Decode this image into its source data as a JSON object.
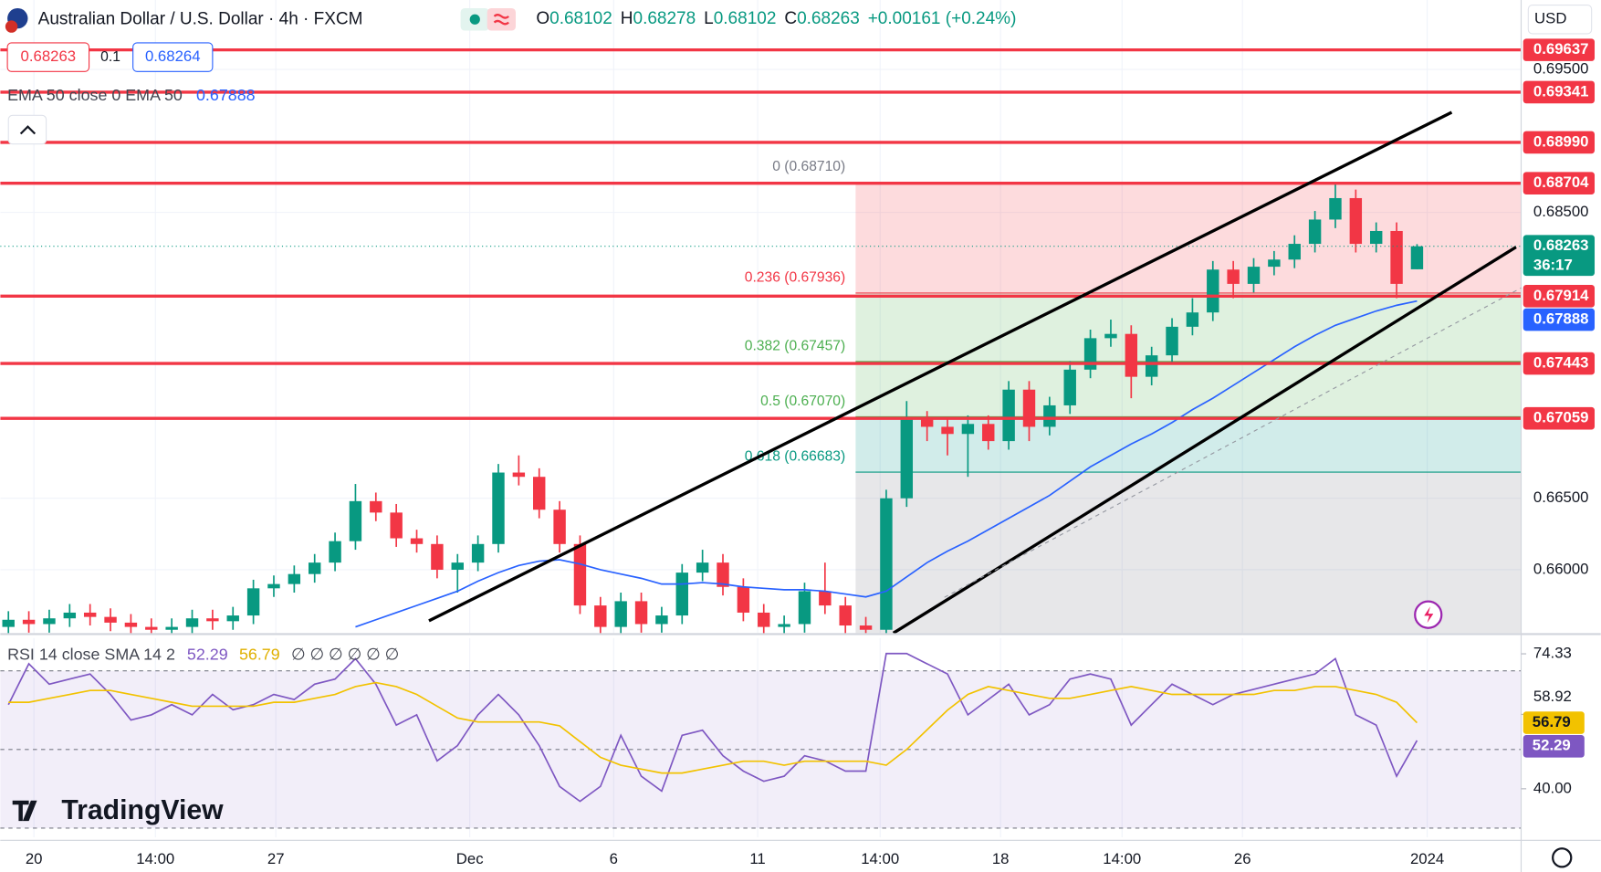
{
  "header": {
    "symbol": "Australian Dollar / U.S. Dollar · 4h · FXCM",
    "ohlc": [
      {
        "label": "O",
        "value": 0.68102
      },
      {
        "label": "H",
        "value": 0.68278
      },
      {
        "label": "L",
        "value": 0.68102
      },
      {
        "label": "C",
        "value": 0.68263
      }
    ],
    "change": "+0.00161 (+0.24%)",
    "currency": "USD"
  },
  "quote": {
    "bid": 0.68263,
    "spread": 0.1,
    "ask": 0.68264
  },
  "ema_legend": {
    "label": "EMA 50 close 0 EMA 50",
    "value": 0.67888
  },
  "brand": "TradingView",
  "chart_data": [
    {
      "type": "candlestick",
      "xlim": [
        -0.4,
        74.1
      ],
      "xticks": [
        {
          "value": 1.25,
          "label": "20"
        },
        {
          "value": 7.2,
          "label": "14:00"
        },
        {
          "value": 13.1,
          "label": "27"
        },
        {
          "value": 22.6,
          "label": "Dec"
        },
        {
          "value": 29.65,
          "label": "6"
        },
        {
          "value": 36.7,
          "label": "11"
        },
        {
          "value": 42.7,
          "label": "14:00"
        },
        {
          "value": 48.6,
          "label": "18"
        },
        {
          "value": 54.55,
          "label": "14:00"
        },
        {
          "value": 60.45,
          "label": "26"
        },
        {
          "value": 69.5,
          "label": "2024"
        }
      ],
      "ylim": [
        0.65557,
        0.69986
      ],
      "yticks": [
        {
          "value": 0.66,
          "label": "0.66000"
        },
        {
          "value": 0.665,
          "label": "0.66500"
        },
        {
          "value": 0.685,
          "label": "0.68500"
        },
        {
          "value": 0.695,
          "label": "0.69500"
        }
      ],
      "grid": true,
      "up_color": "#089981",
      "down_color": "#f23645",
      "open": [
        0.656,
        0.6565,
        0.6562,
        0.6566,
        0.657,
        0.6567,
        0.6563,
        0.656,
        0.6558,
        0.656,
        0.6566,
        0.6564,
        0.6568,
        0.6587,
        0.659,
        0.6597,
        0.6605,
        0.662,
        0.6648,
        0.664,
        0.6622,
        0.6618,
        0.66,
        0.6605,
        0.6618,
        0.6668,
        0.6665,
        0.6642,
        0.6618,
        0.6575,
        0.656,
        0.6578,
        0.6562,
        0.6568,
        0.6598,
        0.6605,
        0.6588,
        0.657,
        0.656,
        0.6562,
        0.6585,
        0.6575,
        0.6561,
        0.6558,
        0.665,
        0.6705,
        0.67,
        0.6695,
        0.6702,
        0.669,
        0.6726,
        0.67,
        0.6715,
        0.674,
        0.6762,
        0.6765,
        0.6735,
        0.675,
        0.677,
        0.678,
        0.681,
        0.68,
        0.6812,
        0.6817,
        0.6828,
        0.6845,
        0.686,
        0.6828,
        0.6837,
        0.68102
      ],
      "high": [
        0.6571,
        0.6571,
        0.6572,
        0.6576,
        0.6576,
        0.6573,
        0.6569,
        0.6566,
        0.6566,
        0.6572,
        0.6572,
        0.6574,
        0.6593,
        0.6596,
        0.6603,
        0.6611,
        0.6626,
        0.666,
        0.6654,
        0.6646,
        0.6628,
        0.6624,
        0.6611,
        0.6624,
        0.6674,
        0.668,
        0.6671,
        0.6648,
        0.6624,
        0.6581,
        0.6584,
        0.6584,
        0.6574,
        0.6604,
        0.6614,
        0.6611,
        0.6594,
        0.6576,
        0.6568,
        0.6591,
        0.6605,
        0.6581,
        0.6567,
        0.6656,
        0.6718,
        0.6711,
        0.6706,
        0.6708,
        0.6708,
        0.6732,
        0.6732,
        0.6721,
        0.6746,
        0.6768,
        0.6775,
        0.6771,
        0.6756,
        0.6776,
        0.679,
        0.6816,
        0.6816,
        0.6818,
        0.6823,
        0.6834,
        0.6851,
        0.6871,
        0.6866,
        0.6843,
        0.6843,
        0.68278
      ],
      "low": [
        0.6554,
        0.6556,
        0.6556,
        0.656,
        0.6561,
        0.6557,
        0.6554,
        0.6552,
        0.6552,
        0.6554,
        0.6558,
        0.6558,
        0.6562,
        0.6581,
        0.6584,
        0.6591,
        0.6599,
        0.6614,
        0.6634,
        0.6616,
        0.6612,
        0.6594,
        0.6584,
        0.6599,
        0.6612,
        0.6659,
        0.6636,
        0.6612,
        0.6569,
        0.6554,
        0.6554,
        0.6556,
        0.6556,
        0.6562,
        0.6592,
        0.6582,
        0.6564,
        0.6554,
        0.6554,
        0.6556,
        0.6569,
        0.6555,
        0.6552,
        0.6552,
        0.6644,
        0.669,
        0.668,
        0.6665,
        0.6684,
        0.6684,
        0.669,
        0.6694,
        0.6709,
        0.6734,
        0.6756,
        0.672,
        0.6729,
        0.6744,
        0.6764,
        0.6774,
        0.679,
        0.6794,
        0.6806,
        0.6811,
        0.6822,
        0.6839,
        0.6822,
        0.6822,
        0.679,
        0.68102
      ],
      "close": [
        0.6565,
        0.6562,
        0.6566,
        0.657,
        0.6567,
        0.6563,
        0.656,
        0.6558,
        0.656,
        0.6566,
        0.6564,
        0.6568,
        0.6587,
        0.659,
        0.6597,
        0.6605,
        0.662,
        0.6648,
        0.664,
        0.6622,
        0.6618,
        0.66,
        0.6605,
        0.6618,
        0.6668,
        0.6665,
        0.6642,
        0.6618,
        0.6575,
        0.656,
        0.6578,
        0.6562,
        0.6568,
        0.6598,
        0.6605,
        0.6588,
        0.657,
        0.656,
        0.6562,
        0.6585,
        0.6575,
        0.6561,
        0.6558,
        0.665,
        0.6705,
        0.67,
        0.6695,
        0.6702,
        0.669,
        0.6726,
        0.67,
        0.6715,
        0.674,
        0.6762,
        0.6765,
        0.6735,
        0.675,
        0.677,
        0.678,
        0.681,
        0.68,
        0.6812,
        0.6817,
        0.6828,
        0.6845,
        0.686,
        0.6828,
        0.6837,
        0.68,
        0.68263
      ],
      "ema": {
        "color": "#2962ff",
        "values": [
          null,
          null,
          null,
          null,
          null,
          null,
          null,
          null,
          null,
          null,
          null,
          null,
          null,
          null,
          null,
          null,
          null,
          0.656,
          0.6565,
          0.657,
          0.6575,
          0.658,
          0.6585,
          0.6592,
          0.6598,
          0.6603,
          0.6606,
          0.6607,
          0.6604,
          0.66,
          0.6597,
          0.6594,
          0.659,
          0.659,
          0.6591,
          0.659,
          0.6588,
          0.6587,
          0.6586,
          0.6586,
          0.6585,
          0.6583,
          0.6581,
          0.6585,
          0.6595,
          0.6605,
          0.6613,
          0.662,
          0.6628,
          0.6636,
          0.6644,
          0.6652,
          0.6662,
          0.6672,
          0.668,
          0.6688,
          0.6695,
          0.6703,
          0.6712,
          0.672,
          0.6729,
          0.6738,
          0.6747,
          0.6756,
          0.6764,
          0.6771,
          0.6776,
          0.6781,
          0.6785,
          0.6788
        ]
      },
      "levels": {
        "color": "#f23645",
        "values": [
          0.69637,
          0.69341,
          0.6899,
          0.68704,
          0.67914,
          0.67443,
          0.67059
        ],
        "value_labels": [
          "0.69637",
          "0.69341",
          "0.68990",
          "0.68704",
          "0.67914",
          "0.67443",
          "0.67059"
        ]
      },
      "last_price": {
        "value": 0.68263,
        "countdown": "36:17",
        "color": "#089981"
      },
      "fib": {
        "labels": [
          "0 (0.68710)",
          "0.236 (0.67936)",
          "0.382 (0.67457)",
          "0.5 (0.67070)",
          "0.618 (0.66683)"
        ],
        "values": [
          0.6871,
          0.67936,
          0.67457,
          0.6707,
          0.66683
        ],
        "colors": [
          "#787b86",
          "#f23645",
          "#4caf50",
          "#4caf50",
          "#089981"
        ],
        "fills": [
          "#f23645",
          "#4caf50",
          "#4caf50",
          "#009688",
          "#787b86"
        ]
      }
    },
    {
      "type": "line",
      "legend": "RSI 14 close SMA 14 2",
      "placeholders": "∅ ∅ ∅ ∅ ∅ ∅",
      "ylim": [
        27.66,
        78.31
      ],
      "yticks": [
        74.33,
        58.92,
        {
          "value": 40,
          "label": "40.00"
        }
      ],
      "bands": [
        70,
        50,
        30
      ],
      "band_color": "#7e57c2",
      "series": [
        {
          "color": "#7e57c2",
          "values": [
            61.4,
            71.8,
            66.6,
            67.9,
            69.2,
            64.0,
            57.5,
            58.8,
            61.4,
            58.8,
            64.0,
            60.1,
            61.4,
            64.0,
            62.7,
            66.6,
            67.9,
            73.1,
            66.6,
            56.2,
            58.8,
            47.1,
            51.0,
            58.8,
            64.0,
            58.8,
            51.0,
            40.6,
            36.8,
            40.6,
            53.6,
            43.2,
            39.4,
            53.6,
            54.9,
            48.4,
            44.5,
            41.9,
            43.2,
            48.4,
            47.1,
            44.5,
            44.5,
            74.4,
            74.4,
            71.8,
            69.2,
            58.8,
            62.7,
            66.6,
            58.8,
            61.4,
            67.9,
            69.2,
            67.9,
            56.2,
            61.4,
            66.6,
            64.0,
            61.4,
            64.0,
            65.3,
            66.6,
            67.9,
            69.2,
            73.1,
            58.8,
            56.2,
            43.2,
            52.29
          ]
        },
        {
          "color": "#f2c200",
          "values": [
            62,
            62,
            63,
            64,
            65,
            65,
            64,
            63,
            62,
            61,
            61,
            61,
            61,
            62,
            62,
            63,
            64,
            66,
            67,
            66,
            64,
            61,
            58,
            57,
            57,
            57,
            57,
            56,
            52,
            48,
            46,
            45,
            44,
            44,
            45,
            46,
            47,
            47,
            46,
            47,
            47,
            47,
            47,
            46,
            50,
            55,
            60,
            64,
            66,
            65,
            64,
            63,
            63,
            64,
            65,
            66,
            65,
            64,
            64,
            64,
            64,
            64,
            65,
            65,
            66,
            66,
            65,
            64,
            62,
            56.79
          ]
        }
      ]
    }
  ]
}
